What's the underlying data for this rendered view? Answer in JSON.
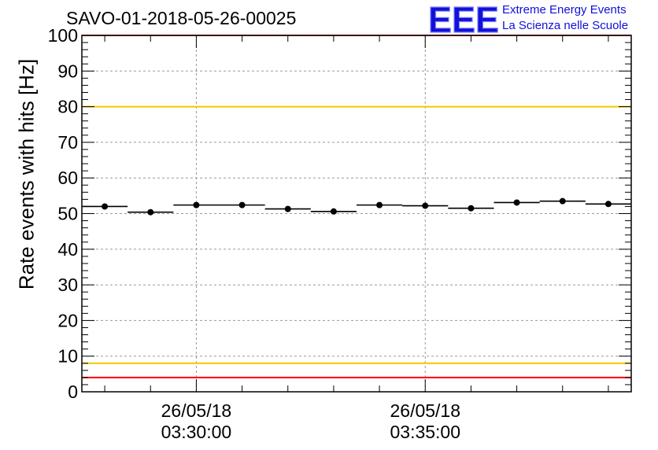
{
  "title": "SAVO-01-2018-05-26-00025",
  "logo": {
    "mark": "EEE",
    "line1": "Extreme Energy Events",
    "line2": "La Scienza nelle Scuole",
    "color": "#1010d8"
  },
  "chart_data": {
    "type": "scatter",
    "title": "SAVO-01-2018-05-26-00025",
    "xlabel": "",
    "ylabel": "Rate events with hits [Hz]",
    "ylim": [
      0,
      100
    ],
    "yticks": [
      0,
      10,
      20,
      30,
      40,
      50,
      60,
      70,
      80,
      90,
      100
    ],
    "xlim": [
      "2018-05-26 03:27:30",
      "2018-05-26 03:39:30"
    ],
    "xticks": [
      {
        "time": "2018-05-26 03:30:00",
        "date_label": "26/05/18",
        "time_label": "03:30:00"
      },
      {
        "time": "2018-05-26 03:35:00",
        "date_label": "26/05/18",
        "time_label": "03:35:00"
      }
    ],
    "grid": true,
    "bin_width_minutes": 1,
    "points": [
      {
        "x": "2018-05-26 03:28:00",
        "y": 52.0
      },
      {
        "x": "2018-05-26 03:29:00",
        "y": 50.4
      },
      {
        "x": "2018-05-26 03:30:00",
        "y": 52.4
      },
      {
        "x": "2018-05-26 03:31:00",
        "y": 52.4
      },
      {
        "x": "2018-05-26 03:32:00",
        "y": 51.3
      },
      {
        "x": "2018-05-26 03:33:00",
        "y": 50.6
      },
      {
        "x": "2018-05-26 03:34:00",
        "y": 52.4
      },
      {
        "x": "2018-05-26 03:35:00",
        "y": 52.2
      },
      {
        "x": "2018-05-26 03:36:00",
        "y": 51.5
      },
      {
        "x": "2018-05-26 03:37:00",
        "y": 53.1
      },
      {
        "x": "2018-05-26 03:38:00",
        "y": 53.5
      },
      {
        "x": "2018-05-26 03:39:00",
        "y": 52.7
      }
    ],
    "reference_lines": [
      {
        "y": 100,
        "color": "#ff0000"
      },
      {
        "y": 80,
        "color": "#f0c800"
      },
      {
        "y": 8,
        "color": "#f0c800"
      },
      {
        "y": 4,
        "color": "#ff0000"
      }
    ],
    "marker_color": "#000000"
  }
}
